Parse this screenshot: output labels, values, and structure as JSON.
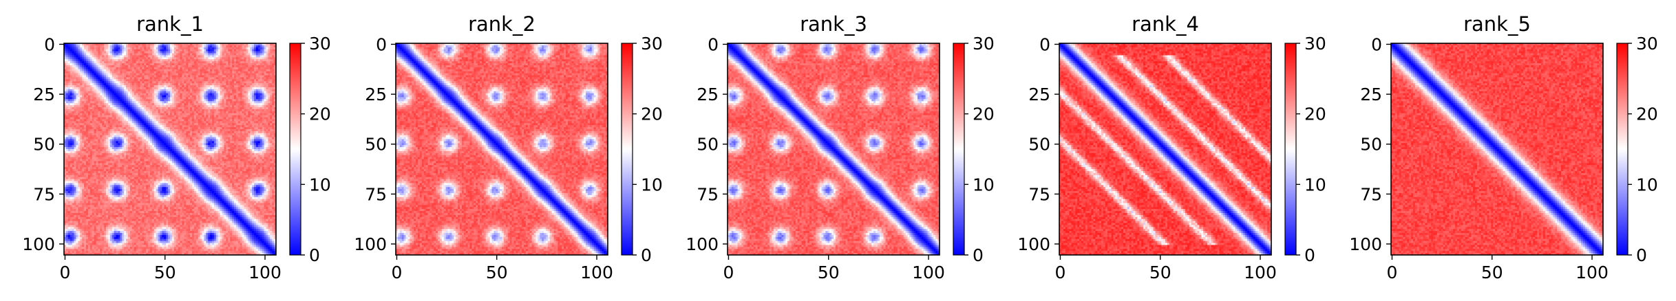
{
  "chart_data": [
    {
      "type": "heatmap",
      "title": "rank_1",
      "n": 106,
      "xticks": [
        0,
        50,
        100
      ],
      "yticks": [
        0,
        25,
        50,
        75,
        100
      ],
      "colorbar": {
        "ticks": [
          0,
          10,
          20,
          30
        ],
        "vmin": 0,
        "vmax": 30,
        "cmap": "bwr"
      },
      "pattern": {
        "blob_period": 23.5,
        "blob_phase": 2.5,
        "blob_strength": 0.75,
        "diag_width": 5.5,
        "background": 0.78,
        "offdiag_bands": []
      }
    },
    {
      "type": "heatmap",
      "title": "rank_2",
      "n": 106,
      "xticks": [
        0,
        50,
        100
      ],
      "yticks": [
        0,
        25,
        50,
        75,
        100
      ],
      "colorbar": {
        "ticks": [
          0,
          10,
          20,
          30
        ],
        "vmin": 0,
        "vmax": 30,
        "cmap": "bwr"
      },
      "pattern": {
        "blob_period": 23.5,
        "blob_phase": 2.5,
        "blob_strength": 0.55,
        "diag_width": 5.0,
        "background": 0.82,
        "offdiag_bands": []
      }
    },
    {
      "type": "heatmap",
      "title": "rank_3",
      "n": 106,
      "xticks": [
        0,
        50,
        100
      ],
      "yticks": [
        0,
        25,
        50,
        75,
        100
      ],
      "colorbar": {
        "ticks": [
          0,
          10,
          20,
          30
        ],
        "vmin": 0,
        "vmax": 30,
        "cmap": "bwr"
      },
      "pattern": {
        "blob_period": 23.5,
        "blob_phase": 2.5,
        "blob_strength": 0.6,
        "diag_width": 5.0,
        "background": 0.82,
        "offdiag_bands": []
      }
    },
    {
      "type": "heatmap",
      "title": "rank_4",
      "n": 106,
      "xticks": [
        0,
        50,
        100
      ],
      "yticks": [
        0,
        25,
        50,
        75,
        100
      ],
      "colorbar": {
        "ticks": [
          0,
          10,
          20,
          30
        ],
        "vmin": 0,
        "vmax": 30,
        "cmap": "bwr"
      },
      "pattern": {
        "blob_period": 0,
        "blob_phase": 0,
        "blob_strength": 0,
        "diag_width": 5.0,
        "background": 0.88,
        "offdiag_bands": [
          24,
          -24,
          48,
          -48
        ]
      }
    },
    {
      "type": "heatmap",
      "title": "rank_5",
      "n": 106,
      "xticks": [
        0,
        50,
        100
      ],
      "yticks": [
        0,
        25,
        50,
        75,
        100
      ],
      "colorbar": {
        "ticks": [
          0,
          10,
          20,
          30
        ],
        "vmin": 0,
        "vmax": 30,
        "cmap": "bwr"
      },
      "pattern": {
        "blob_period": 0,
        "blob_phase": 0,
        "blob_strength": 0,
        "diag_width": 6.0,
        "background": 0.86,
        "offdiag_bands": []
      }
    }
  ]
}
